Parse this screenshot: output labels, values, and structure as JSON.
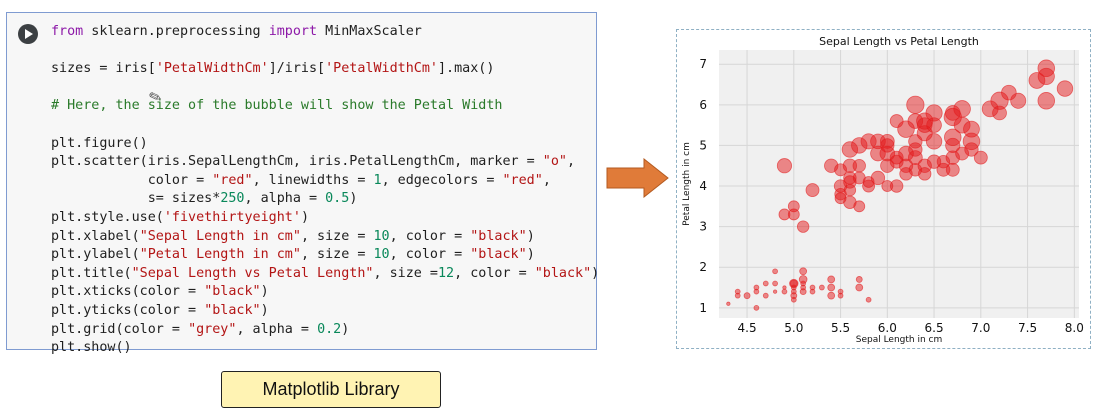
{
  "code_cell": {
    "lines": [
      [
        {
          "t": "from",
          "c": "kw"
        },
        {
          "t": " sklearn.preprocessing ",
          "c": ""
        },
        {
          "t": "import",
          "c": "kw"
        },
        {
          "t": " MinMaxScaler",
          "c": ""
        }
      ],
      [],
      [
        {
          "t": "sizes = iris[",
          "c": ""
        },
        {
          "t": "'PetalWidthCm'",
          "c": "str"
        },
        {
          "t": "]/iris[",
          "c": ""
        },
        {
          "t": "'PetalWidthCm'",
          "c": "str"
        },
        {
          "t": "].max()",
          "c": ""
        }
      ],
      [],
      [
        {
          "t": "# Here, the size of the bubble will show the Petal Width",
          "c": "cmt"
        }
      ],
      [],
      [
        {
          "t": "plt.figure()",
          "c": ""
        }
      ],
      [
        {
          "t": "plt.scatter(iris.SepalLengthCm, iris.PetalLengthCm, marker = ",
          "c": ""
        },
        {
          "t": "\"o\"",
          "c": "str"
        },
        {
          "t": ",",
          "c": ""
        }
      ],
      [
        {
          "t": "            color = ",
          "c": ""
        },
        {
          "t": "\"red\"",
          "c": "str"
        },
        {
          "t": ", linewidths = ",
          "c": ""
        },
        {
          "t": "1",
          "c": "num"
        },
        {
          "t": ", edgecolors = ",
          "c": ""
        },
        {
          "t": "\"red\"",
          "c": "str"
        },
        {
          "t": ",",
          "c": ""
        }
      ],
      [
        {
          "t": "            s= sizes*",
          "c": ""
        },
        {
          "t": "250",
          "c": "num"
        },
        {
          "t": ", alpha = ",
          "c": ""
        },
        {
          "t": "0.5",
          "c": "num"
        },
        {
          "t": ")",
          "c": ""
        }
      ],
      [
        {
          "t": "plt.style.use(",
          "c": ""
        },
        {
          "t": "'fivethirtyeight'",
          "c": "str"
        },
        {
          "t": ")",
          "c": ""
        }
      ],
      [
        {
          "t": "plt.xlabel(",
          "c": ""
        },
        {
          "t": "\"Sepal Length in cm\"",
          "c": "str"
        },
        {
          "t": ", size = ",
          "c": ""
        },
        {
          "t": "10",
          "c": "num"
        },
        {
          "t": ", color = ",
          "c": ""
        },
        {
          "t": "\"black\"",
          "c": "str"
        },
        {
          "t": ")",
          "c": ""
        }
      ],
      [
        {
          "t": "plt.ylabel(",
          "c": ""
        },
        {
          "t": "\"Petal Length in cm\"",
          "c": "str"
        },
        {
          "t": ", size = ",
          "c": ""
        },
        {
          "t": "10",
          "c": "num"
        },
        {
          "t": ", color = ",
          "c": ""
        },
        {
          "t": "\"black\"",
          "c": "str"
        },
        {
          "t": ")",
          "c": ""
        }
      ],
      [
        {
          "t": "plt.title(",
          "c": ""
        },
        {
          "t": "\"Sepal Length vs Petal Length\"",
          "c": "str"
        },
        {
          "t": ", size =",
          "c": ""
        },
        {
          "t": "12",
          "c": "num"
        },
        {
          "t": ", color = ",
          "c": ""
        },
        {
          "t": "\"black\"",
          "c": "str"
        },
        {
          "t": ")",
          "c": ""
        }
      ],
      [
        {
          "t": "plt.xticks(color = ",
          "c": ""
        },
        {
          "t": "\"black\"",
          "c": "str"
        },
        {
          "t": ")",
          "c": ""
        }
      ],
      [
        {
          "t": "plt.yticks(color = ",
          "c": ""
        },
        {
          "t": "\"black\"",
          "c": "str"
        },
        {
          "t": ")",
          "c": ""
        }
      ],
      [
        {
          "t": "plt.grid(color = ",
          "c": ""
        },
        {
          "t": "\"grey\"",
          "c": "str"
        },
        {
          "t": ", alpha = ",
          "c": ""
        },
        {
          "t": "0.2",
          "c": "num"
        },
        {
          "t": ")",
          "c": ""
        }
      ],
      [
        {
          "t": "plt.show()",
          "c": ""
        }
      ]
    ]
  },
  "arrow": {
    "color": "#e07b39",
    "icon": "right-arrow-icon"
  },
  "chart_data": {
    "type": "scatter",
    "title": "Sepal Length vs Petal Length",
    "xlabel": "Sepal Length in cm",
    "ylabel": "Petal Length in cm",
    "xlim": [
      4.2,
      8.05
    ],
    "ylim": [
      0.75,
      7.35
    ],
    "xticks": [
      "4.5",
      "5.0",
      "5.5",
      "6.0",
      "6.5",
      "7.0",
      "7.5",
      "8.0"
    ],
    "yticks": [
      "1",
      "2",
      "3",
      "4",
      "5",
      "6",
      "7"
    ],
    "grid": true,
    "marker_color": "#e31a1c",
    "alpha": 0.5,
    "size_encodes": "petal-width",
    "points": [
      [
        4.3,
        1.1,
        0.1
      ],
      [
        4.4,
        1.4,
        0.2
      ],
      [
        4.4,
        1.3,
        0.2
      ],
      [
        4.5,
        1.3,
        0.3
      ],
      [
        4.6,
        1.4,
        0.2
      ],
      [
        4.6,
        1.5,
        0.2
      ],
      [
        4.6,
        1.0,
        0.2
      ],
      [
        4.7,
        1.3,
        0.2
      ],
      [
        4.7,
        1.6,
        0.2
      ],
      [
        4.8,
        1.4,
        0.1
      ],
      [
        4.8,
        1.6,
        0.2
      ],
      [
        4.8,
        1.9,
        0.2
      ],
      [
        4.9,
        1.4,
        0.2
      ],
      [
        4.9,
        1.5,
        0.1
      ],
      [
        5.0,
        1.4,
        0.2
      ],
      [
        5.0,
        1.6,
        0.6
      ],
      [
        5.0,
        1.5,
        0.2
      ],
      [
        5.0,
        1.2,
        0.2
      ],
      [
        5.0,
        1.3,
        0.3
      ],
      [
        5.0,
        1.6,
        0.4
      ],
      [
        5.1,
        1.5,
        0.2
      ],
      [
        5.1,
        1.4,
        0.3
      ],
      [
        5.1,
        1.7,
        0.5
      ],
      [
        5.1,
        1.9,
        0.4
      ],
      [
        5.1,
        1.6,
        0.2
      ],
      [
        5.2,
        1.5,
        0.2
      ],
      [
        5.2,
        1.4,
        0.2
      ],
      [
        5.3,
        1.5,
        0.2
      ],
      [
        5.4,
        1.7,
        0.4
      ],
      [
        5.4,
        1.5,
        0.4
      ],
      [
        5.4,
        1.3,
        0.4
      ],
      [
        5.5,
        1.4,
        0.2
      ],
      [
        5.5,
        1.3,
        0.2
      ],
      [
        5.7,
        1.7,
        0.3
      ],
      [
        5.7,
        1.5,
        0.4
      ],
      [
        5.8,
        1.2,
        0.2
      ],
      [
        4.9,
        4.5,
        1.7
      ],
      [
        4.9,
        3.3,
        1.0
      ],
      [
        5.0,
        3.5,
        1.0
      ],
      [
        5.0,
        3.3,
        1.0
      ],
      [
        5.1,
        3.0,
        1.1
      ],
      [
        5.2,
        3.9,
        1.4
      ],
      [
        5.4,
        4.5,
        1.5
      ],
      [
        5.5,
        4.0,
        1.3
      ],
      [
        5.5,
        3.8,
        1.1
      ],
      [
        5.5,
        3.7,
        1.0
      ],
      [
        5.5,
        4.4,
        1.2
      ],
      [
        5.6,
        3.9,
        1.1
      ],
      [
        5.6,
        4.5,
        1.5
      ],
      [
        5.6,
        3.6,
        1.3
      ],
      [
        5.6,
        4.2,
        1.3
      ],
      [
        5.6,
        4.1,
        1.3
      ],
      [
        5.6,
        4.9,
        2.0
      ],
      [
        5.7,
        4.5,
        1.3
      ],
      [
        5.7,
        3.5,
        1.0
      ],
      [
        5.7,
        4.2,
        1.2
      ],
      [
        5.7,
        5.0,
        2.0
      ],
      [
        5.8,
        4.1,
        1.0
      ],
      [
        5.8,
        4.0,
        1.2
      ],
      [
        5.8,
        5.1,
        1.9
      ],
      [
        5.9,
        4.8,
        1.8
      ],
      [
        5.9,
        4.2,
        1.5
      ],
      [
        5.9,
        5.1,
        1.8
      ],
      [
        6.0,
        4.5,
        1.5
      ],
      [
        6.0,
        4.0,
        1.0
      ],
      [
        6.0,
        5.1,
        1.6
      ],
      [
        6.0,
        4.8,
        1.8
      ],
      [
        6.0,
        5.0,
        1.5
      ],
      [
        6.1,
        4.7,
        1.4
      ],
      [
        6.1,
        4.0,
        1.3
      ],
      [
        6.1,
        5.6,
        1.4
      ],
      [
        6.1,
        4.6,
        1.4
      ],
      [
        6.2,
        4.3,
        1.3
      ],
      [
        6.2,
        5.4,
        2.3
      ],
      [
        6.2,
        4.5,
        1.5
      ],
      [
        6.2,
        4.8,
        1.8
      ],
      [
        6.3,
        4.7,
        1.6
      ],
      [
        6.3,
        6.0,
        2.5
      ],
      [
        6.3,
        5.6,
        1.8
      ],
      [
        6.3,
        5.1,
        1.5
      ],
      [
        6.3,
        4.9,
        1.5
      ],
      [
        6.3,
        4.4,
        1.3
      ],
      [
        6.4,
        4.5,
        1.5
      ],
      [
        6.4,
        5.3,
        1.9
      ],
      [
        6.4,
        5.5,
        1.8
      ],
      [
        6.4,
        5.6,
        2.2
      ],
      [
        6.4,
        4.3,
        1.3
      ],
      [
        6.5,
        4.6,
        1.5
      ],
      [
        6.5,
        5.8,
        2.2
      ],
      [
        6.5,
        5.1,
        2.0
      ],
      [
        6.5,
        5.5,
        1.8
      ],
      [
        6.6,
        4.6,
        1.3
      ],
      [
        6.6,
        4.4,
        1.4
      ],
      [
        6.7,
        4.4,
        1.4
      ],
      [
        6.7,
        5.0,
        1.7
      ],
      [
        6.7,
        4.7,
        1.5
      ],
      [
        6.7,
        5.8,
        1.8
      ],
      [
        6.7,
        5.7,
        2.5
      ],
      [
        6.7,
        5.2,
        2.3
      ],
      [
        6.8,
        4.8,
        1.4
      ],
      [
        6.8,
        5.5,
        2.1
      ],
      [
        6.8,
        5.9,
        2.3
      ],
      [
        6.9,
        4.9,
        1.5
      ],
      [
        6.9,
        5.4,
        2.1
      ],
      [
        6.9,
        5.1,
        2.3
      ],
      [
        7.0,
        4.7,
        1.4
      ],
      [
        7.1,
        5.9,
        2.1
      ],
      [
        7.2,
        6.1,
        2.5
      ],
      [
        7.2,
        5.8,
        1.6
      ],
      [
        7.3,
        6.3,
        1.8
      ],
      [
        7.4,
        6.1,
        1.9
      ],
      [
        7.6,
        6.6,
        2.1
      ],
      [
        7.7,
        6.7,
        2.2
      ],
      [
        7.7,
        6.9,
        2.3
      ],
      [
        7.7,
        6.1,
        2.3
      ],
      [
        7.9,
        6.4,
        2.0
      ]
    ]
  },
  "label": {
    "text": "Matplotlib Library"
  }
}
